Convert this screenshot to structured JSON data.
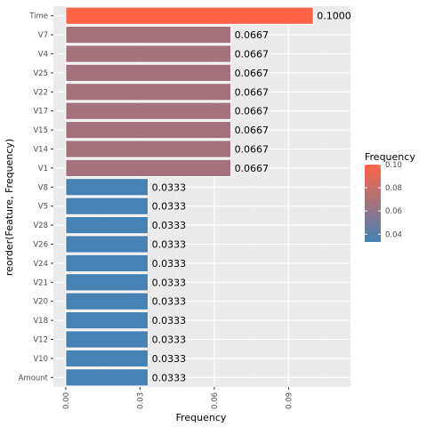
{
  "chart_data": {
    "type": "bar",
    "orientation": "horizontal",
    "categories": [
      "Time",
      "V7",
      "V4",
      "V25",
      "V22",
      "V17",
      "V15",
      "V14",
      "V1",
      "V8",
      "V5",
      "V28",
      "V26",
      "V24",
      "V21",
      "V20",
      "V18",
      "V12",
      "V10",
      "Amount"
    ],
    "values": [
      0.1,
      0.0667,
      0.0667,
      0.0667,
      0.0667,
      0.0667,
      0.0667,
      0.0667,
      0.0667,
      0.0333,
      0.0333,
      0.0333,
      0.0333,
      0.0333,
      0.0333,
      0.0333,
      0.0333,
      0.0333,
      0.0333,
      0.0333
    ],
    "value_labels": [
      "0.1000",
      "0.0667",
      "0.0667",
      "0.0667",
      "0.0667",
      "0.0667",
      "0.0667",
      "0.0667",
      "0.0667",
      "0.0333",
      "0.0333",
      "0.0333",
      "0.0333",
      "0.0333",
      "0.0333",
      "0.0333",
      "0.0333",
      "0.0333",
      "0.0333",
      "0.0333"
    ],
    "xlabel": "Frequency",
    "ylabel": "reorder(Feature, Frequency)",
    "xlim": [
      -0.005,
      0.115
    ],
    "x_ticks": [
      0.0,
      0.03,
      0.06,
      0.09
    ],
    "x_tick_labels": [
      "0.00",
      "0.03",
      "0.06",
      "0.09"
    ],
    "grid": true,
    "legend": {
      "title": "Frequency",
      "placement": "right",
      "type": "colorbar",
      "range": [
        0.0333,
        0.1
      ],
      "ticks": [
        0.04,
        0.06,
        0.08,
        0.1
      ],
      "tick_labels": [
        "0.04",
        "0.06",
        "0.08",
        "0.10"
      ],
      "low_color": "#4682B4",
      "high_color": "#FF6347"
    },
    "colors": {
      "panel_bg": "#EBEBEB",
      "grid_major": "#FFFFFF",
      "grid_minor": "#F2F2F2",
      "axis_text": "#4D4D4D",
      "title_text": "#000000",
      "bar_low": "#4682B4",
      "bar_high": "#FF6347"
    }
  }
}
